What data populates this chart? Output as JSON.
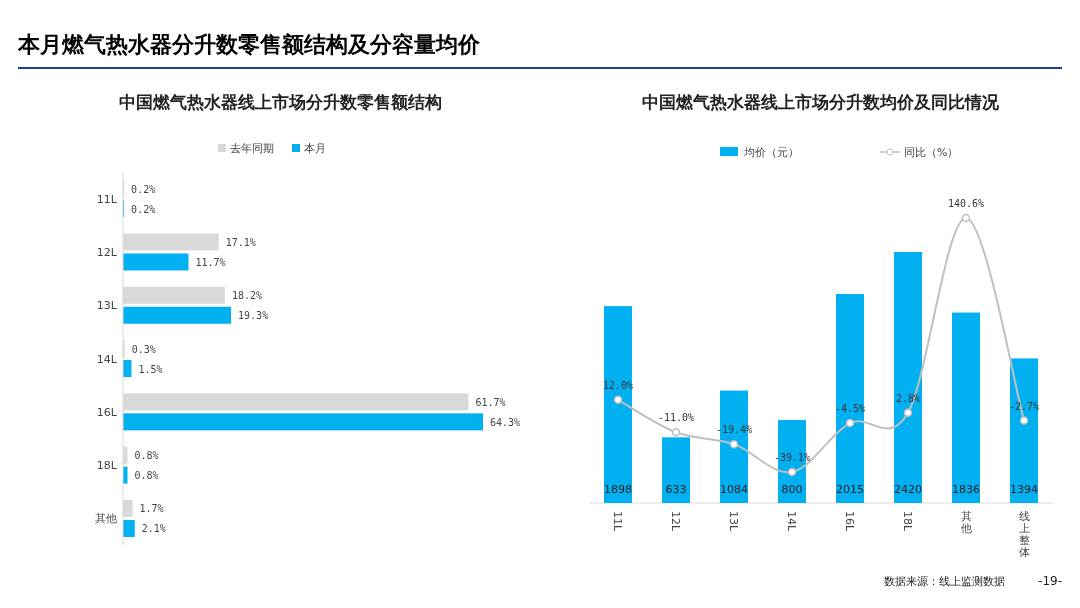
{
  "chart_data": [
    {
      "type": "bar",
      "orientation": "horizontal",
      "title": "本月燃气热水器分升数零售额结构及分容量均价",
      "subtitle": "中国燃气热水器线上市场分升数零售额结构",
      "categories": [
        "11L",
        "12L",
        "13L",
        "14L",
        "16L",
        "18L",
        "其他"
      ],
      "legend": "top left",
      "series": [
        {
          "name": "去年同期",
          "color": "#d9d9d9",
          "values": [
            0.2,
            17.1,
            18.2,
            0.3,
            61.7,
            0.8,
            1.7
          ],
          "value_labels": [
            "0.2%",
            "17.1%",
            "18.2%",
            "0.3%",
            "61.7%",
            "0.8%",
            "1.7%"
          ]
        },
        {
          "name": "本月",
          "color": "#00b0f0",
          "values": [
            0.2,
            11.7,
            19.3,
            1.5,
            64.3,
            0.8,
            2.1
          ],
          "value_labels": [
            "0.2%",
            "11.7%",
            "19.3%",
            "1.5%",
            "64.3%",
            "0.8%",
            "2.1%"
          ]
        }
      ]
    },
    {
      "type": "bar",
      "title": "中国燃气热水器线上市场分升数均价及同比情况",
      "categories": [
        "11L",
        "12L",
        "13L",
        "14L",
        "16L",
        "18L",
        "其他",
        "线上整体"
      ],
      "legend": "top",
      "annotations": [
        "数据来源：线上监测数据",
        "-19-"
      ],
      "series": [
        {
          "name": "均价（元）",
          "type": "bar",
          "color": "#00b0f0",
          "values": [
            1898,
            633,
            1084,
            800,
            2015,
            2420,
            1836,
            1394
          ],
          "data_labels": true
        },
        {
          "name": "同比（%）",
          "type": "line",
          "axis": "y2",
          "color": "#bfbfbf",
          "marker": "circle",
          "values": [
            12.0,
            -11.0,
            -19.4,
            -39.1,
            -4.5,
            2.8,
            140.6,
            -2.7
          ],
          "value_labels": [
            "12.0%",
            "-11.0%",
            "-19.4%",
            "-39.1%",
            "-4.5%",
            "2.8%",
            "140.6%",
            "-2.7%"
          ]
        }
      ]
    }
  ]
}
